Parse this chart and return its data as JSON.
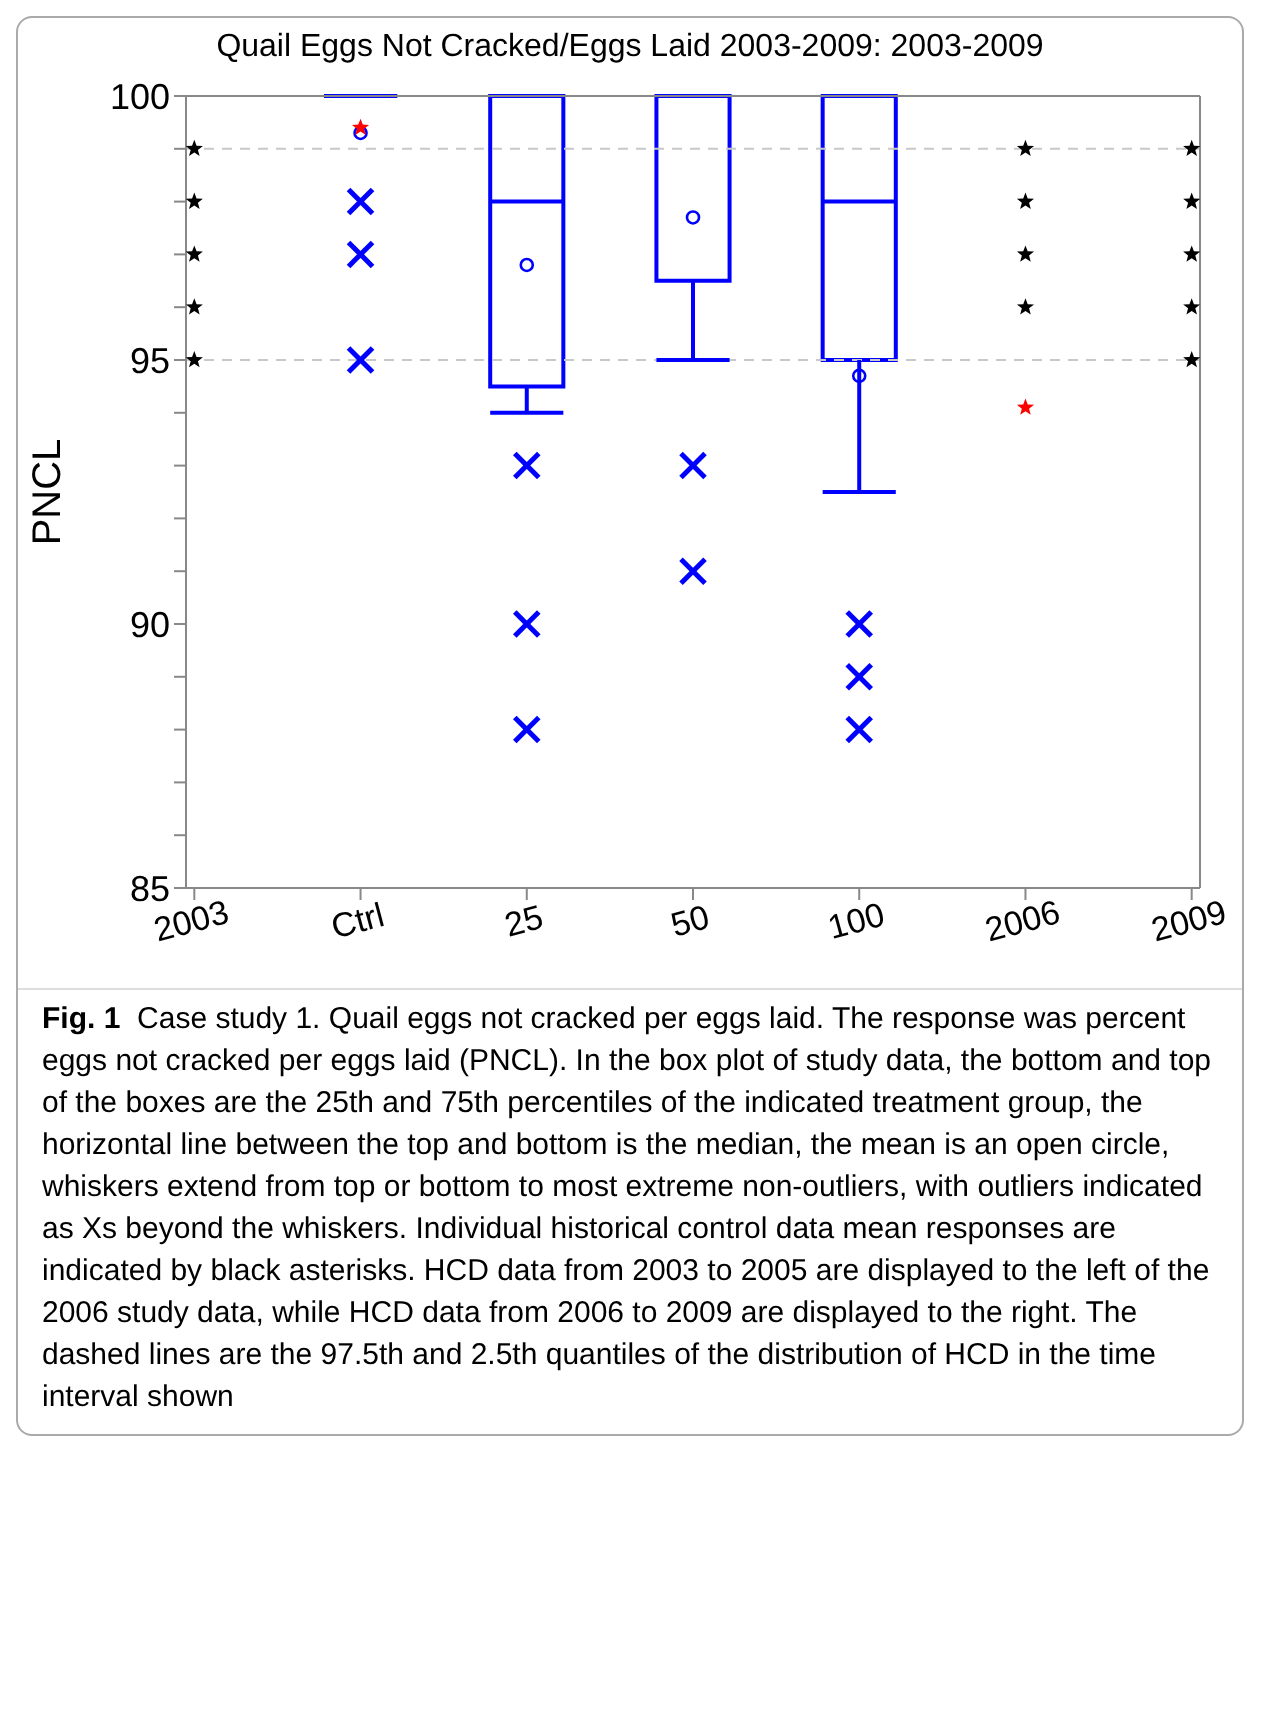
{
  "chart_data": {
    "type": "box",
    "title": "Quail Eggs Not Cracked/Eggs Laid 2003-2009: 2003-2009",
    "ylabel": "PNCL",
    "categories": [
      "2003",
      "Ctrl",
      "25",
      "50",
      "100",
      "2006",
      "2009"
    ],
    "ylim": [
      85,
      100
    ],
    "yticks": [
      85,
      {
        "value": 86,
        "label": null
      },
      {
        "value": 87,
        "label": null
      },
      {
        "value": 88,
        "label": null
      },
      {
        "value": 89,
        "label": null
      },
      90,
      {
        "value": 91,
        "label": null
      },
      {
        "value": 92,
        "label": null
      },
      {
        "value": 93,
        "label": null
      },
      {
        "value": 94,
        "label": null
      },
      95,
      {
        "value": 96,
        "label": null
      },
      {
        "value": 97,
        "label": null
      },
      {
        "value": 98,
        "label": null
      },
      {
        "value": 99,
        "label": null
      },
      100
    ],
    "ref_lines": [
      {
        "axis": "y",
        "value": 99,
        "color": "#c8c8c8",
        "line_style": "dashed"
      },
      {
        "axis": "y",
        "value": 95,
        "color": "#c8c8c8",
        "line_style": "dashed"
      }
    ],
    "series": [
      {
        "color": "#0000ff",
        "boxes": [
          null,
          {
            "low": 100,
            "q1": 100,
            "median": 100,
            "q3": 100,
            "high": 100,
            "mean": 99.3,
            "outliers": [
              98,
              97,
              95
            ]
          },
          {
            "low": 94,
            "q1": 94.5,
            "median": 98,
            "q3": 100,
            "high": 100,
            "mean": 96.8,
            "outliers": [
              93,
              90,
              88
            ]
          },
          {
            "low": 95,
            "q1": 96.5,
            "median": 100,
            "q3": 100,
            "high": 100,
            "mean": 97.7,
            "outliers": [
              93,
              91
            ]
          },
          {
            "low": 92.5,
            "q1": 95,
            "median": 98,
            "q3": 100,
            "high": 100,
            "mean": 94.7,
            "outliers": [
              90,
              89,
              88
            ]
          },
          null,
          null
        ]
      },
      {
        "type": "scatter",
        "color": "#000000",
        "marker": "star",
        "values": [
          99,
          null,
          null,
          null,
          null,
          99,
          99
        ]
      },
      {
        "type": "scatter",
        "color": "#000000",
        "marker": "star",
        "values": [
          98,
          null,
          null,
          null,
          null,
          98,
          98
        ]
      },
      {
        "type": "scatter",
        "color": "#000000",
        "marker": "star",
        "values": [
          97,
          null,
          null,
          null,
          null,
          97,
          97
        ]
      },
      {
        "type": "scatter",
        "color": "#000000",
        "marker": "star",
        "values": [
          96,
          null,
          null,
          null,
          null,
          96,
          96
        ]
      },
      {
        "type": "scatter",
        "color": "#000000",
        "marker": "star",
        "values": [
          95,
          null,
          null,
          null,
          null,
          null,
          95
        ]
      },
      {
        "type": "scatter",
        "color": "#ff0000",
        "marker": "star",
        "values": [
          null,
          99.4,
          null,
          null,
          null,
          94.1,
          null
        ]
      }
    ],
    "annotations": [
      "Fig. 1",
      "Case study 1. Quail eggs not cracked per eggs laid. The response was percent eggs not cracked per eggs laid (PNCL). In the box plot of study data, the bottom and top of the boxes are the 25th and 75th percentiles of the indicated treatment group, the horizontal line between the top and bottom is the median, the mean is an open circle, whiskers extend from top or bottom to most extreme non-outliers, with outliers indicated as Xs beyond the whiskers. Individual historical control data mean responses are indicated by black asterisks. HCD data from 2003 to 2005 are displayed to the left of the 2006 study data, while HCD data from 2006 to 2009 are displayed to the right. The dashed lines are the 97.5th and 2.5th quantiles of the distribution of HCD in the time interval shown"
    ]
  }
}
